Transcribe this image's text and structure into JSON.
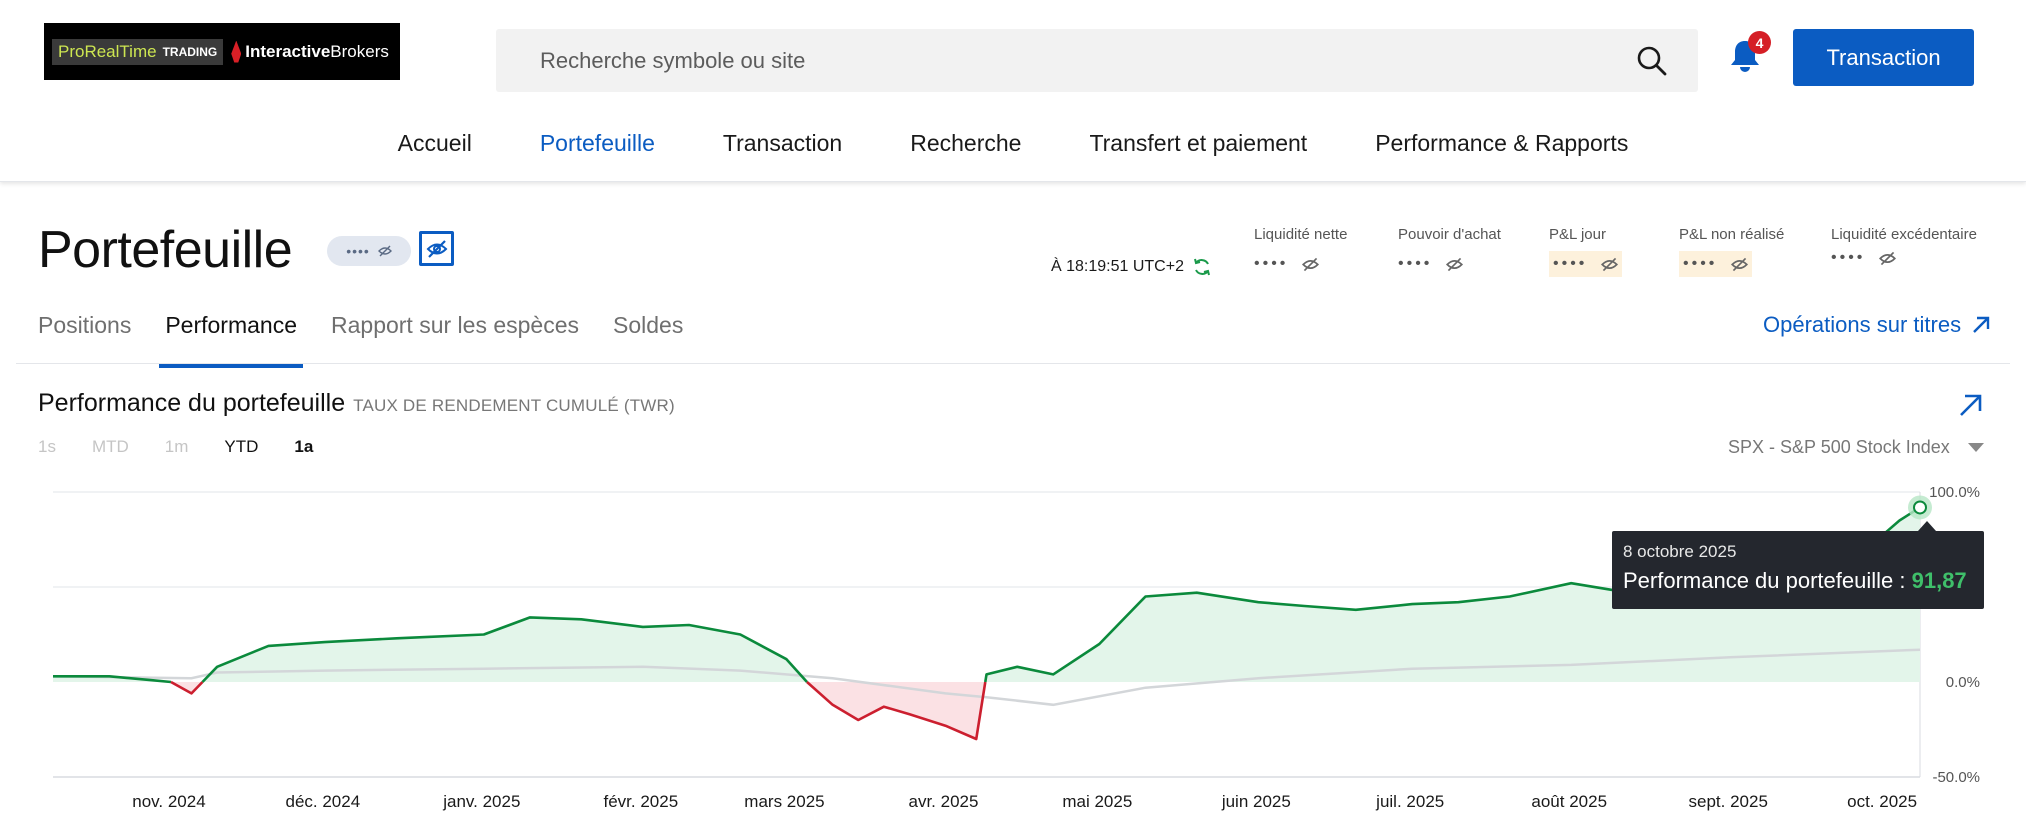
{
  "header": {
    "logo": {
      "prt_text": "ProRealTime",
      "prt_sub": "TRADING",
      "ib_text_1": "Interactive",
      "ib_text_2": "Brokers"
    },
    "search": {
      "placeholder": "Recherche symbole ou site"
    },
    "notifications": {
      "count": "4"
    },
    "transaction_button": "Transaction"
  },
  "main_nav": [
    {
      "label": "Accueil",
      "active": false
    },
    {
      "label": "Portefeuille",
      "active": true
    },
    {
      "label": "Transaction",
      "active": false
    },
    {
      "label": "Recherche",
      "active": false
    },
    {
      "label": "Transfert et paiement",
      "active": false
    },
    {
      "label": "Performance & Rapports",
      "active": false
    }
  ],
  "page": {
    "title": "Portefeuille",
    "masked_value": "••••",
    "timestamp": "À 18:19:51 UTC+2",
    "metrics": [
      {
        "label": "Liquidité nette",
        "value": "••••",
        "highlight": false
      },
      {
        "label": "Pouvoir d'achat",
        "value": "••••",
        "highlight": false
      },
      {
        "label": "P&L jour",
        "value": "••••",
        "highlight": true
      },
      {
        "label": "P&L non réalisé",
        "value": "••••",
        "highlight": true
      },
      {
        "label": "Liquidité excédentaire",
        "value": "••••",
        "highlight": false
      }
    ]
  },
  "subtabs": [
    {
      "label": "Positions",
      "active": false
    },
    {
      "label": "Performance",
      "active": true
    },
    {
      "label": "Rapport sur les espèces",
      "active": false
    },
    {
      "label": "Soldes",
      "active": false
    }
  ],
  "securities_link": "Opérations sur titres",
  "performance": {
    "title": "Performance du portefeuille",
    "subtitle": "TAUX DE RENDEMENT CUMULÉ (TWR)",
    "ranges": [
      {
        "label": "1s",
        "state": "disabled"
      },
      {
        "label": "MTD",
        "state": "disabled"
      },
      {
        "label": "1m",
        "state": "disabled"
      },
      {
        "label": "YTD",
        "state": "enabled"
      },
      {
        "label": "1a",
        "state": "selected"
      }
    ],
    "benchmark": "SPX - S&P 500 Stock Index",
    "tooltip": {
      "date": "8 octobre 2025",
      "label": "Performance du portefeuille : ",
      "value": "91,87"
    }
  },
  "colors": {
    "accent": "#0b5cc2",
    "positive": "#0b8a3c",
    "negative": "#cc1f2f",
    "positive_fill": "#e3f5ea",
    "negative_fill": "#fbe1e4",
    "benchmark": "#d3d6d9"
  },
  "chart_data": {
    "type": "area",
    "x_tick_labels": [
      "nov. 2024",
      "déc. 2024",
      "janv. 2025",
      "févr. 2025",
      "mars 2025",
      "avr. 2025",
      "mai 2025",
      "juin 2025",
      "juil. 2025",
      "août 2025",
      "sept. 2025",
      "oct. 2025"
    ],
    "y_tick_labels": [
      "100.0%",
      "0.0%",
      "-50.0%"
    ],
    "ylim": [
      -50,
      100
    ],
    "grid": true,
    "series": [
      {
        "name": "Performance du portefeuille",
        "x": [
          "2024-10-09",
          "2024-10-20",
          "2024-10-28",
          "2024-11-01",
          "2024-11-05",
          "2024-11-10",
          "2024-11-20",
          "2024-12-01",
          "2024-12-15",
          "2025-01-01",
          "2025-01-10",
          "2025-01-20",
          "2025-02-01",
          "2025-02-10",
          "2025-02-20",
          "2025-03-01",
          "2025-03-05",
          "2025-03-10",
          "2025-03-15",
          "2025-03-20",
          "2025-03-25",
          "2025-04-01",
          "2025-04-07",
          "2025-04-09",
          "2025-04-15",
          "2025-04-22",
          "2025-05-01",
          "2025-05-10",
          "2025-05-20",
          "2025-06-01",
          "2025-06-10",
          "2025-06-20",
          "2025-07-01",
          "2025-07-10",
          "2025-07-20",
          "2025-08-01",
          "2025-08-10",
          "2025-08-20",
          "2025-09-01",
          "2025-09-10",
          "2025-09-20",
          "2025-09-28",
          "2025-10-01",
          "2025-10-04",
          "2025-10-08"
        ],
        "y": [
          3,
          3,
          1,
          0,
          -6,
          8,
          19,
          21,
          23,
          25,
          34,
          33,
          29,
          30,
          25,
          12,
          0,
          -12,
          -20,
          -13,
          -17,
          -23,
          -30,
          4,
          8,
          4,
          20,
          45,
          47,
          42,
          40,
          38,
          41,
          42,
          45,
          52,
          48,
          52,
          56,
          54,
          58,
          62,
          78,
          85,
          91.87
        ]
      },
      {
        "name": "SPX - S&P 500 Stock Index",
        "x": [
          "2024-10-09",
          "2024-11-05",
          "2024-11-10",
          "2024-12-01",
          "2025-01-01",
          "2025-02-01",
          "2025-02-20",
          "2025-03-10",
          "2025-04-01",
          "2025-04-09",
          "2025-04-22",
          "2025-05-10",
          "2025-06-01",
          "2025-07-01",
          "2025-08-01",
          "2025-09-01",
          "2025-10-08"
        ],
        "y": [
          3,
          2,
          5,
          6,
          7,
          8,
          6,
          2,
          -6,
          -8,
          -12,
          -3,
          2,
          7,
          9,
          13,
          17
        ]
      }
    ]
  }
}
